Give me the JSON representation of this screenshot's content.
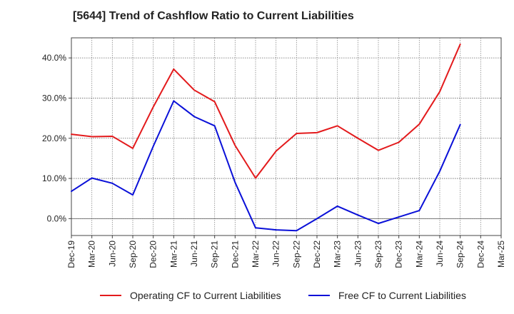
{
  "chart_data": {
    "type": "line",
    "title": "[5644]  Trend of Cashflow Ratio to Current Liabilities",
    "xlabel": "",
    "ylabel": "",
    "categories": [
      "Dec-19",
      "Mar-20",
      "Jun-20",
      "Sep-20",
      "Dec-20",
      "Mar-21",
      "Jun-21",
      "Sep-21",
      "Dec-21",
      "Mar-22",
      "Jun-22",
      "Sep-22",
      "Dec-22",
      "Mar-23",
      "Jun-23",
      "Sep-23",
      "Dec-23",
      "Mar-24",
      "Jun-24",
      "Sep-24",
      "Dec-24",
      "Mar-25"
    ],
    "ylim": [
      -4.2,
      45.0
    ],
    "yticks": [
      0,
      10,
      20,
      30,
      40
    ],
    "ytick_labels": [
      "0.0%",
      "10.0%",
      "20.0%",
      "30.0%",
      "40.0%"
    ],
    "grid": true,
    "legend_position": "bottom",
    "series": [
      {
        "name": "Operating CF to Current Liabilities",
        "color": "#e31a1c",
        "values": [
          21.0,
          20.4,
          20.5,
          17.5,
          27.8,
          37.2,
          32.0,
          29.1,
          18.2,
          10.1,
          16.8,
          21.2,
          21.4,
          23.1,
          20.0,
          17.0,
          19.0,
          23.5,
          31.6,
          43.4,
          null,
          null
        ]
      },
      {
        "name": "Free CF to Current Liabilities",
        "color": "#0a10d8",
        "values": [
          6.8,
          10.1,
          8.8,
          5.9,
          18.0,
          29.3,
          25.4,
          23.1,
          9.0,
          -2.3,
          -2.8,
          -3.0,
          0.0,
          3.1,
          0.9,
          -1.2,
          0.4,
          2.0,
          11.8,
          23.4,
          null,
          null
        ]
      }
    ]
  }
}
